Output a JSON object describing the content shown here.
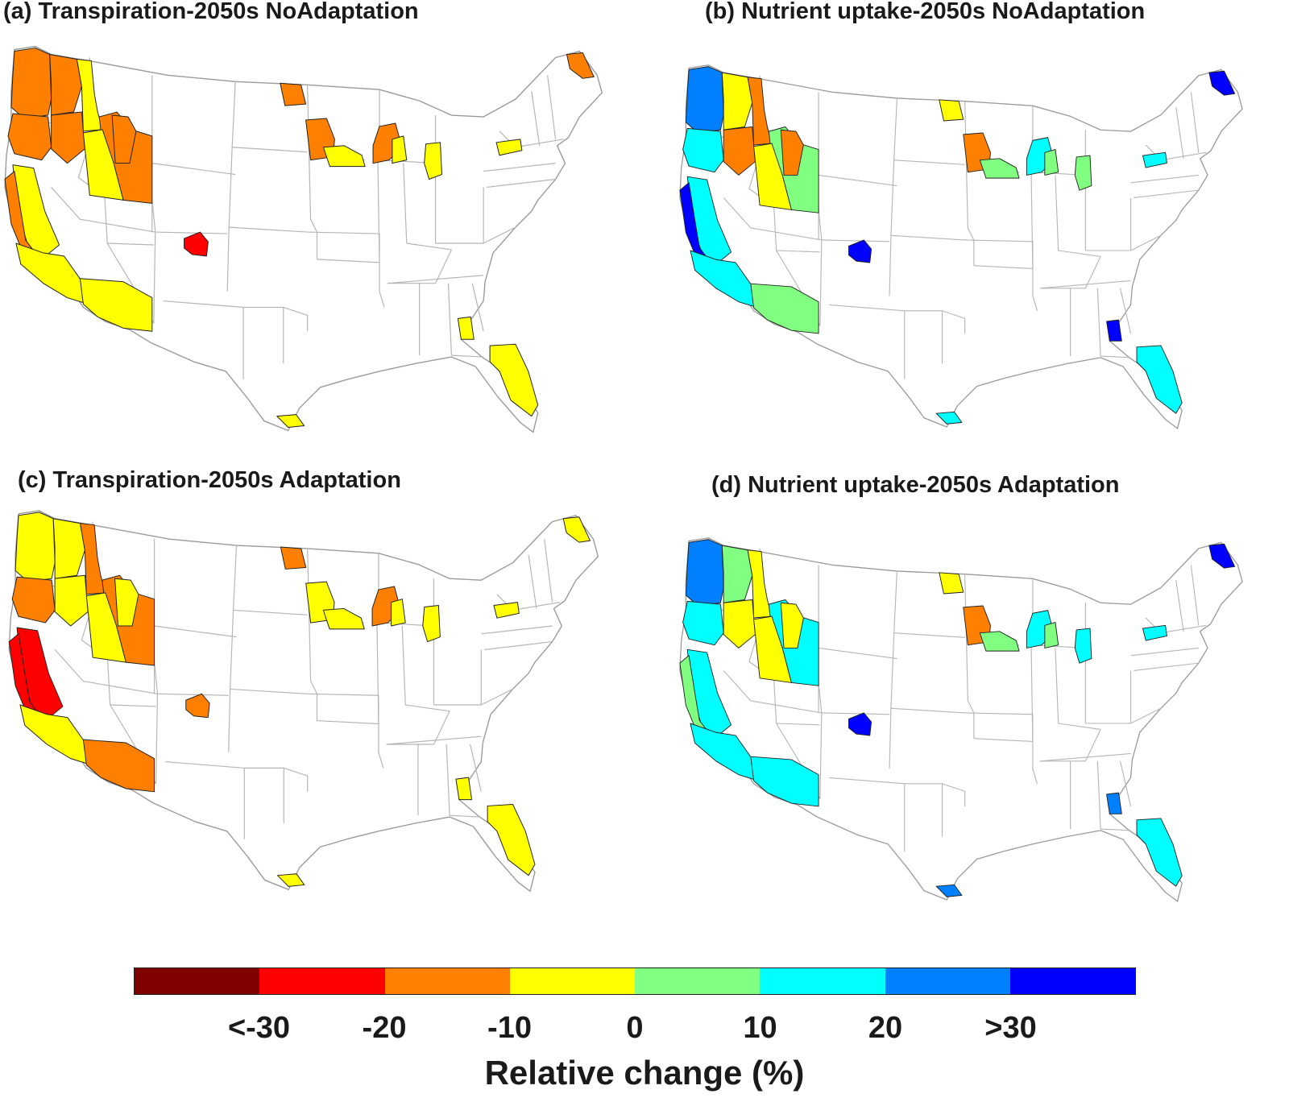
{
  "panels": [
    {
      "title": "(a) Transpiration-2050s NoAdaptation",
      "regions": [
        {
          "name": "Washington west",
          "value": -15
        },
        {
          "name": "Washington east",
          "value": -15
        },
        {
          "name": "Oregon west",
          "value": -15
        },
        {
          "name": "Oregon east",
          "value": -15
        },
        {
          "name": "Idaho north",
          "value": -5
        },
        {
          "name": "Montana west",
          "value": -15
        },
        {
          "name": "Idaho south",
          "value": -5
        },
        {
          "name": "Montana southwest",
          "value": -15
        },
        {
          "name": "Northern California",
          "value": -5
        },
        {
          "name": "California coast",
          "value": -15
        },
        {
          "name": "Southern California",
          "value": -5
        },
        {
          "name": "Arizona",
          "value": -5
        },
        {
          "name": "Colorado",
          "value": -25
        },
        {
          "name": "North Dakota",
          "value": -15
        },
        {
          "name": "Minnesota",
          "value": -15
        },
        {
          "name": "Minnesota south",
          "value": -5
        },
        {
          "name": "Wisconsin",
          "value": -15
        },
        {
          "name": "Wisconsin south",
          "value": -5
        },
        {
          "name": "Michigan",
          "value": -5
        },
        {
          "name": "New York",
          "value": -5
        },
        {
          "name": "Maine",
          "value": -15
        },
        {
          "name": "Georgia",
          "value": -5
        },
        {
          "name": "Florida",
          "value": -5
        },
        {
          "name": "Texas south",
          "value": -5
        }
      ]
    },
    {
      "title": "(b) Nutrient uptake-2050s NoAdaptation",
      "regions": [
        {
          "name": "Washington west",
          "value": 25
        },
        {
          "name": "Washington east",
          "value": -5
        },
        {
          "name": "Oregon west",
          "value": 15
        },
        {
          "name": "Oregon east",
          "value": -15
        },
        {
          "name": "Idaho north",
          "value": -15
        },
        {
          "name": "Montana west",
          "value": 5
        },
        {
          "name": "Idaho south",
          "value": -5
        },
        {
          "name": "Montana southwest",
          "value": -15
        },
        {
          "name": "Northern California",
          "value": 15
        },
        {
          "name": "California coast",
          "value": 35
        },
        {
          "name": "Southern California",
          "value": 15
        },
        {
          "name": "Arizona",
          "value": 5
        },
        {
          "name": "Colorado",
          "value": 35
        },
        {
          "name": "North Dakota",
          "value": -5
        },
        {
          "name": "Minnesota",
          "value": -15
        },
        {
          "name": "Minnesota south",
          "value": 5
        },
        {
          "name": "Wisconsin",
          "value": 15
        },
        {
          "name": "Wisconsin south",
          "value": 5
        },
        {
          "name": "Michigan",
          "value": 5
        },
        {
          "name": "New York",
          "value": 15
        },
        {
          "name": "Maine",
          "value": 35
        },
        {
          "name": "Georgia",
          "value": 35
        },
        {
          "name": "Florida",
          "value": 15
        },
        {
          "name": "Texas south",
          "value": 15
        }
      ]
    },
    {
      "title": "(c) Transpiration-2050s Adaptation",
      "regions": [
        {
          "name": "Washington west",
          "value": -5
        },
        {
          "name": "Washington east",
          "value": -5
        },
        {
          "name": "Oregon west",
          "value": -15
        },
        {
          "name": "Oregon east",
          "value": -5
        },
        {
          "name": "Idaho north",
          "value": -15
        },
        {
          "name": "Montana west",
          "value": -15
        },
        {
          "name": "Idaho south",
          "value": -5
        },
        {
          "name": "Montana southwest",
          "value": -5
        },
        {
          "name": "Northern California",
          "value": -25
        },
        {
          "name": "California coast",
          "value": -25
        },
        {
          "name": "Southern California",
          "value": -5
        },
        {
          "name": "Arizona",
          "value": -15
        },
        {
          "name": "Colorado",
          "value": -15
        },
        {
          "name": "North Dakota",
          "value": -15
        },
        {
          "name": "Minnesota",
          "value": -5
        },
        {
          "name": "Minnesota south",
          "value": -5
        },
        {
          "name": "Wisconsin",
          "value": -15
        },
        {
          "name": "Wisconsin south",
          "value": -5
        },
        {
          "name": "Michigan",
          "value": -5
        },
        {
          "name": "New York",
          "value": -5
        },
        {
          "name": "Maine",
          "value": -5
        },
        {
          "name": "Georgia",
          "value": -5
        },
        {
          "name": "Florida",
          "value": -5
        },
        {
          "name": "Texas south",
          "value": -5
        }
      ]
    },
    {
      "title": "(d) Nutrient uptake-2050s Adaptation",
      "regions": [
        {
          "name": "Washington west",
          "value": 25
        },
        {
          "name": "Washington east",
          "value": 5
        },
        {
          "name": "Oregon west",
          "value": 15
        },
        {
          "name": "Oregon east",
          "value": -5
        },
        {
          "name": "Idaho north",
          "value": -5
        },
        {
          "name": "Montana west",
          "value": 15
        },
        {
          "name": "Idaho south",
          "value": -5
        },
        {
          "name": "Montana southwest",
          "value": -5
        },
        {
          "name": "Northern California",
          "value": 15
        },
        {
          "name": "California coast",
          "value": 5
        },
        {
          "name": "Southern California",
          "value": 15
        },
        {
          "name": "Arizona",
          "value": 15
        },
        {
          "name": "Colorado",
          "value": 35
        },
        {
          "name": "North Dakota",
          "value": -5
        },
        {
          "name": "Minnesota",
          "value": -15
        },
        {
          "name": "Minnesota south",
          "value": 5
        },
        {
          "name": "Wisconsin",
          "value": 15
        },
        {
          "name": "Wisconsin south",
          "value": 5
        },
        {
          "name": "Michigan",
          "value": 15
        },
        {
          "name": "New York",
          "value": 15
        },
        {
          "name": "Maine",
          "value": 35
        },
        {
          "name": "Georgia",
          "value": 25
        },
        {
          "name": "Florida",
          "value": 15
        },
        {
          "name": "Texas south",
          "value": 25
        }
      ]
    }
  ],
  "colorbar": {
    "title": "Relative change (%)",
    "tick_labels": [
      "<-30",
      "-20",
      "-10",
      "0",
      "10",
      "20",
      ">30"
    ],
    "bins": [
      {
        "min": -40,
        "max": -30,
        "color": "#7f0000"
      },
      {
        "min": -30,
        "max": -20,
        "color": "#ff0000"
      },
      {
        "min": -20,
        "max": -10,
        "color": "#ff8000"
      },
      {
        "min": -10,
        "max": 0,
        "color": "#ffff00"
      },
      {
        "min": 0,
        "max": 10,
        "color": "#80ff80"
      },
      {
        "min": 10,
        "max": 20,
        "color": "#00ffff"
      },
      {
        "min": 20,
        "max": 30,
        "color": "#0080ff"
      },
      {
        "min": 30,
        "max": 40,
        "color": "#0000ff"
      }
    ]
  }
}
